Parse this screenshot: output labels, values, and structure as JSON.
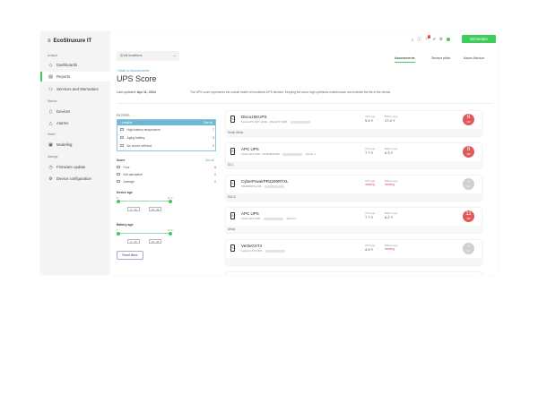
{
  "app": {
    "logo": "EcoStruxure IT"
  },
  "sidebar": {
    "sections": [
      {
        "title": "Analyze",
        "items": [
          {
            "label": "Dashboards",
            "icon": "eye-icon"
          },
          {
            "label": "Reports",
            "icon": "report-icon",
            "active": true
          },
          {
            "label": "Services and Warranties",
            "icon": "services-icon"
          }
        ]
      },
      {
        "title": "Monitor",
        "items": [
          {
            "label": "Devices",
            "icon": "device-icon"
          },
          {
            "label": "Alarms",
            "icon": "alarm-icon"
          }
        ]
      },
      {
        "title": "Model",
        "items": [
          {
            "label": "Modeling",
            "icon": "modeling-icon"
          }
        ]
      },
      {
        "title": "Manage",
        "items": [
          {
            "label": "Firmware update",
            "icon": "firmware-icon"
          },
          {
            "label": "Device configuration",
            "icon": "config-icon"
          }
        ]
      }
    ]
  },
  "header": {
    "brand_button": "Schneider",
    "notification_count": "1",
    "location_select": "All locations",
    "tabs": [
      {
        "label": "Assessments",
        "active": true
      },
      {
        "label": "Sensor plots"
      },
      {
        "label": "Asset Advisor"
      }
    ]
  },
  "page": {
    "back_link": "Back to Assessments",
    "title": "UPS Score",
    "last_updated_label": "Last updated:",
    "last_updated": "Apr 11, 2024",
    "description": "The UPS score represents the overall health of monitored UPS devices. Keeping the score high optimizes maintenance and extends the life of the device."
  },
  "filters": {
    "title": "FILTERS",
    "insights": {
      "title": "Insights",
      "see_all": "See all",
      "items": [
        {
          "label": "High battery temperature",
          "count": "7"
        },
        {
          "label": "Aging battery",
          "count": "3"
        },
        {
          "label": "No recent self-test",
          "count": "2"
        }
      ]
    },
    "score": {
      "title": "Score",
      "see_all": "See all",
      "items": [
        {
          "label": "Poor",
          "count": "6"
        },
        {
          "label": "Not calculated",
          "count": "2"
        },
        {
          "label": "Average",
          "count": "2"
        }
      ]
    },
    "device_age": {
      "title": "Device age",
      "min": "0",
      "max": "14.0",
      "ranges": [
        "0 - 10",
        "10 - 20"
      ]
    },
    "battery_age": {
      "title": "Battery age",
      "min": "0",
      "max": "14.0",
      "ranges": [
        "0 - 10",
        "10 - 20"
      ]
    },
    "reset": "Reset filters"
  },
  "cards_labels": {
    "ups_age": "UPS age",
    "battery_age": "Battery age",
    "score_max": "100"
  },
  "cards": [
    {
      "name": "Disco10KUPS",
      "model": "Smart-UPS SRT 10000 - QS1447170495 -",
      "ups_age": "9.4 Y",
      "battery_age": "17.4 Y",
      "score": "6",
      "location": "South Africa",
      "score_color": "#e05a5a"
    },
    {
      "name": "APC UPS",
      "model": "Smart-UPS 2200 - AS1835210260 -",
      "suffix": "- Server 1",
      "ups_age": "7.7 Y",
      "battery_age": "0.3 Y",
      "score": "8",
      "location": "DC1",
      "score_color": "#e05a5a"
    },
    {
      "name": "CyberPowerPR2200RTXL",
      "model": "PR2200RTXL2U8 -",
      "ups_age": "missing",
      "battery_age": "missing",
      "score": "–",
      "location": "RACK",
      "score_color": "#d0d0d0"
    },
    {
      "name": "APC UPS",
      "model": "Smart-UPS 2200 -",
      "suffix": "- Server 2",
      "ups_age": "7.7 Y",
      "battery_age": "5.2 Y",
      "score": "11",
      "location": "Africa",
      "score_color": "#e05a5a"
    },
    {
      "name": "VertivGXT4",
      "model": "Liebert GXT4 UPS -",
      "ups_age": "4.9 Y",
      "battery_age": "missing",
      "score": "–",
      "location": "",
      "score_color": "#d0d0d0"
    }
  ]
}
